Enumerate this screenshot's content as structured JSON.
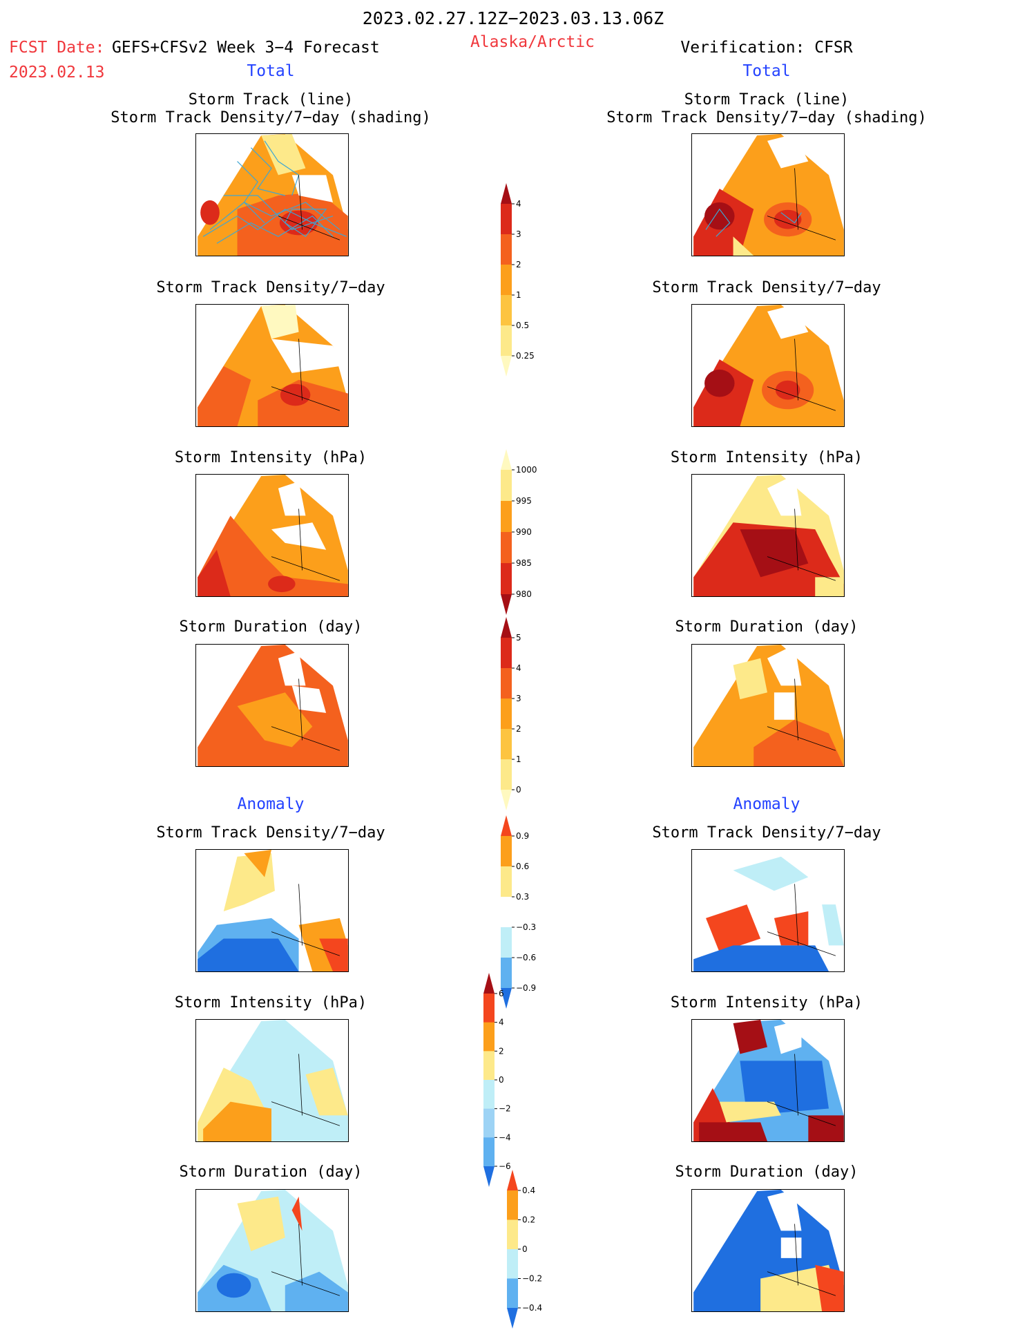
{
  "header": {
    "title": "2023.02.27.12Z−2023.03.13.06Z",
    "fcst_label": "FCST Date:",
    "fcst_model": "GEFS+CFSv2 Week 3−4 Forecast",
    "fcst_date": "2023.02.13",
    "region": "Alaska/Arctic",
    "verification": "Verification: CFSR"
  },
  "sections": {
    "total_left": "Total",
    "total_right": "Total",
    "anomaly_left": "Anomaly",
    "anomaly_right": "Anomaly"
  },
  "panels": {
    "track_line": "Storm Track (line)",
    "track_shading": "Storm Track Density/7−day (shading)",
    "density": "Storm Track Density/7−day",
    "intensity": "Storm Intensity (hPa)",
    "duration": "Storm Duration (day)"
  },
  "colorbars": {
    "density_total": {
      "ticks": [
        "4",
        "3",
        "2",
        "1",
        "0.5",
        "0.25"
      ],
      "colors": [
        "#a50f15",
        "#dc2a1a",
        "#f4611e",
        "#fc9f1b",
        "#fdc440",
        "#fde98a",
        "#fff9c0"
      ]
    },
    "intensity_total": {
      "ticks": [
        "1000",
        "995",
        "990",
        "985",
        "980"
      ],
      "colors": [
        "#fff9c0",
        "#fde98a",
        "#fc9f1b",
        "#f4611e",
        "#dc2a1a",
        "#a50f15"
      ]
    },
    "duration_total": {
      "ticks": [
        "5",
        "4",
        "3",
        "2",
        "1",
        "0"
      ],
      "colors": [
        "#a50f15",
        "#dc2a1a",
        "#f4611e",
        "#fc9f1b",
        "#fdc440",
        "#fde98a",
        "#fff9c0"
      ]
    },
    "density_anom": {
      "ticks": [
        "0.9",
        "0.6",
        "0.3",
        "−0.3",
        "−0.6",
        "−0.9"
      ],
      "colors": [
        "#f4461e",
        "#fc9f1b",
        "#fde98a",
        "#ffffff",
        "#bfeef7",
        "#5fb1f0",
        "#1f6fe0"
      ]
    },
    "intensity_anom": {
      "ticks": [
        "6",
        "4",
        "2",
        "0",
        "−2",
        "−4",
        "−6"
      ],
      "colors": [
        "#a50f15",
        "#f4461e",
        "#fc9f1b",
        "#fde98a",
        "#bfeef7",
        "#9dd3f5",
        "#5fb1f0",
        "#1f6fe0"
      ]
    },
    "duration_anom": {
      "ticks": [
        "0.4",
        "0.2",
        "0",
        "−0.2",
        "−0.4"
      ],
      "colors": [
        "#f4461e",
        "#fc9f1b",
        "#fde98a",
        "#bfeef7",
        "#5fb1f0",
        "#1f6fe0"
      ]
    }
  }
}
